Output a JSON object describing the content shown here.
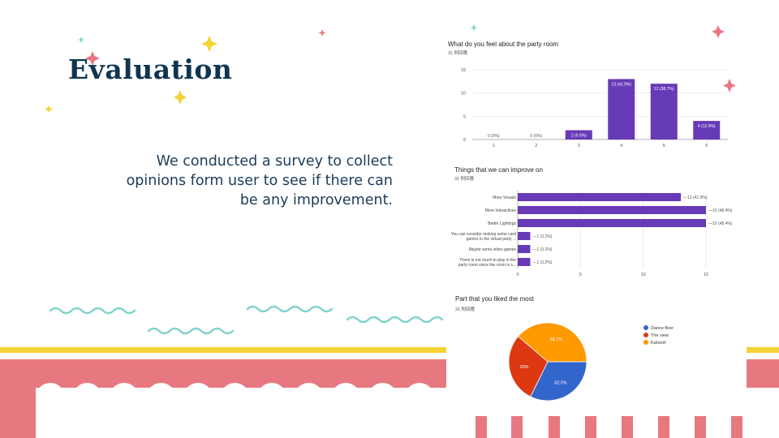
{
  "slide": {
    "title": "Evaluation",
    "body": "We conducted a survey to collect opinions form user to see if there can be any improvement."
  },
  "colors": {
    "title": "#0f3550",
    "bar": "#673ab7",
    "pink": "#e87880",
    "yellow": "#f4d334",
    "teal": "#7fd3cb"
  },
  "chart_data": [
    {
      "type": "bar",
      "title": "What do you feel about the party room",
      "subtitle": "31 則回應",
      "categories": [
        "1",
        "2",
        "3",
        "4",
        "5",
        "6"
      ],
      "values": [
        0,
        0,
        2,
        13,
        12,
        4
      ],
      "labels": [
        "0 (0%)",
        "0 (0%)",
        "2 (6.5%)",
        "13 (41.9%)",
        "12 (38.7%)",
        "4 (12.9%)"
      ],
      "ylim": [
        0,
        15
      ],
      "yticks": [
        "0",
        "5",
        "10",
        "15"
      ],
      "color": "#673ab7",
      "grid": true
    },
    {
      "type": "bar",
      "orientation": "horizontal",
      "title": "Things that we can improve on",
      "subtitle": "31 則回應",
      "categories": [
        "More Visuals",
        "More Interactives",
        "Better Lightings",
        "You can consider making some card games in the virtual party ...",
        "Maybe some video games",
        "There is not much to play in the party room since the room is s..."
      ],
      "values": [
        13,
        15,
        15,
        1,
        1,
        1
      ],
      "labels": [
        "13 (41.9%)",
        "15 (48.4%)",
        "15 (48.4%)",
        "1 (3.2%)",
        "1 (3.2%)",
        "1 (3.2%)"
      ],
      "xlim": [
        0,
        15
      ],
      "xticks": [
        "0",
        "5",
        "10",
        "15"
      ],
      "color": "#673ab7",
      "grid": true
    },
    {
      "type": "pie",
      "title": "Part that you liked the most",
      "subtitle": "31 則回應",
      "categories": [
        "Dance floor",
        "The view",
        "Kahoot!"
      ],
      "values": [
        32.3,
        29,
        38.7
      ],
      "labels": [
        "32.3%",
        "29%",
        "38.7%"
      ],
      "colors": [
        "#3366cc",
        "#dc3912",
        "#ff9900"
      ],
      "legend": "right"
    }
  ]
}
